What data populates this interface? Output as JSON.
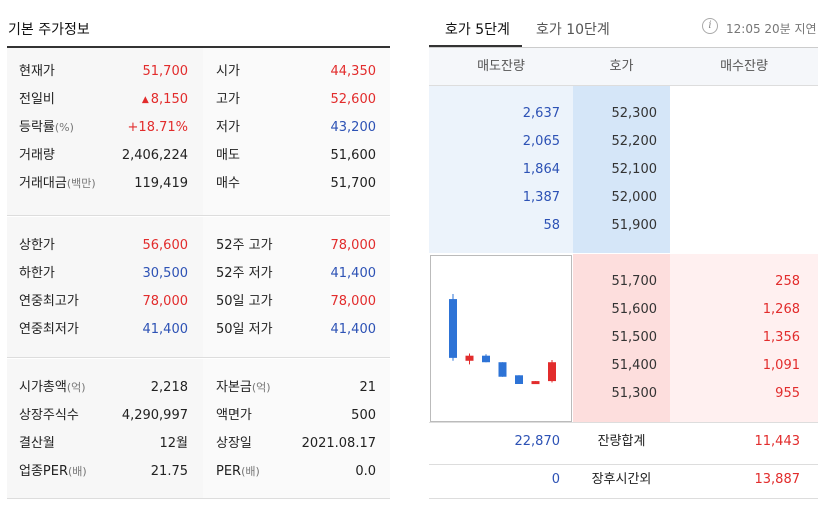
{
  "left": {
    "title": "기본 주가정보",
    "section1": [
      {
        "k1": "현재가",
        "k1_unit": "",
        "v1": "51,700",
        "v1_color": "red",
        "v1_prefix": "",
        "k2": "시가",
        "k2_unit": "",
        "v2": "44,350",
        "v2_color": "red"
      },
      {
        "k1": "전일비",
        "k1_unit": "",
        "v1": "8,150",
        "v1_color": "red",
        "v1_prefix": "▲",
        "k2": "고가",
        "k2_unit": "",
        "v2": "52,600",
        "v2_color": "red"
      },
      {
        "k1": "등락률",
        "k1_unit": "(%)",
        "v1": "+18.71%",
        "v1_color": "red",
        "v1_prefix": "",
        "k2": "저가",
        "k2_unit": "",
        "v2": "43,200",
        "v2_color": "blue"
      },
      {
        "k1": "거래량",
        "k1_unit": "",
        "v1": "2,406,224",
        "v1_color": "",
        "v1_prefix": "",
        "k2": "매도",
        "k2_unit": "",
        "v2": "51,600",
        "v2_color": ""
      },
      {
        "k1": "거래대금",
        "k1_unit": "(백만)",
        "v1": "119,419",
        "v1_color": "",
        "v1_prefix": "",
        "k2": "매수",
        "k2_unit": "",
        "v2": "51,700",
        "v2_color": ""
      }
    ],
    "section2": [
      {
        "k1": "상한가",
        "k1_unit": "",
        "v1": "56,600",
        "v1_color": "red",
        "v1_prefix": "",
        "k2": "52주 고가",
        "k2_unit": "",
        "v2": "78,000",
        "v2_color": "red"
      },
      {
        "k1": "하한가",
        "k1_unit": "",
        "v1": "30,500",
        "v1_color": "blue",
        "v1_prefix": "",
        "k2": "52주 저가",
        "k2_unit": "",
        "v2": "41,400",
        "v2_color": "blue"
      },
      {
        "k1": "연중최고가",
        "k1_unit": "",
        "v1": "78,000",
        "v1_color": "red",
        "v1_prefix": "",
        "k2": "50일 고가",
        "k2_unit": "",
        "v2": "78,000",
        "v2_color": "red"
      },
      {
        "k1": "연중최저가",
        "k1_unit": "",
        "v1": "41,400",
        "v1_color": "blue",
        "v1_prefix": "",
        "k2": "50일 저가",
        "k2_unit": "",
        "v2": "41,400",
        "v2_color": "blue"
      }
    ],
    "section3": [
      {
        "k1": "시가총액",
        "k1_unit": "(억)",
        "v1": "2,218",
        "v1_color": "",
        "v1_prefix": "",
        "k2": "자본금",
        "k2_unit": "(억)",
        "v2": "21",
        "v2_color": ""
      },
      {
        "k1": "상장주식수",
        "k1_unit": "",
        "v1": "4,290,997",
        "v1_color": "",
        "v1_prefix": "",
        "k2": "액면가",
        "k2_unit": "",
        "v2": "500",
        "v2_color": ""
      },
      {
        "k1": "결산월",
        "k1_unit": "",
        "v1": "12월",
        "v1_color": "",
        "v1_prefix": "",
        "k2": "상장일",
        "k2_unit": "",
        "v2": "2021.08.17",
        "v2_color": ""
      },
      {
        "k1": "업종PER",
        "k1_unit": "(배)",
        "v1": "21.75",
        "v1_color": "",
        "v1_prefix": "",
        "k2": "PER",
        "k2_unit": "(배)",
        "v2": "0.0",
        "v2_color": ""
      }
    ]
  },
  "right": {
    "tabs": [
      {
        "label": "호가 5단계",
        "active": true
      },
      {
        "label": "호가 10단계",
        "active": false
      }
    ],
    "info_icon": "i",
    "delay_text": "12:05 20분 지연",
    "headers": [
      "매도잔량",
      "호가",
      "매수잔량"
    ],
    "asks": [
      {
        "qty": "2,637",
        "price": "52,300"
      },
      {
        "qty": "2,065",
        "price": "52,200"
      },
      {
        "qty": "1,864",
        "price": "52,100"
      },
      {
        "qty": "1,387",
        "price": "52,000"
      },
      {
        "qty": "58",
        "price": "51,900"
      }
    ],
    "bids": [
      {
        "price": "51,700",
        "qty": "258"
      },
      {
        "price": "51,600",
        "qty": "1,268"
      },
      {
        "price": "51,500",
        "qty": "1,356"
      },
      {
        "price": "51,400",
        "qty": "1,091"
      },
      {
        "price": "51,300",
        "qty": "955"
      }
    ],
    "summary": [
      {
        "left": "22,870",
        "label": "잔량합계",
        "right": "11,443"
      },
      {
        "left": "0",
        "label": "장후시간외",
        "right": "13,887"
      }
    ],
    "colors": {
      "up": "#e22c2c",
      "down": "#2d52b5",
      "candle_down": "#2d73d6"
    },
    "mini_chart": {
      "type": "candlestick",
      "candles": [
        {
          "direction": "down",
          "open": 0.93,
          "close": 0.12,
          "high": 1.0,
          "low": 0.08
        },
        {
          "direction": "up",
          "open": 0.08,
          "close": 0.15,
          "high": 0.18,
          "low": 0.03
        },
        {
          "direction": "down",
          "open": 0.15,
          "close": 0.06,
          "high": 0.17,
          "low": 0.06
        },
        {
          "direction": "down",
          "open": 0.06,
          "close": -0.14,
          "high": 0.06,
          "low": -0.14
        },
        {
          "direction": "down",
          "open": -0.12,
          "close": -0.24,
          "high": -0.12,
          "low": -0.24
        },
        {
          "direction": "up",
          "open": -0.23,
          "close": -0.2,
          "high": -0.2,
          "low": -0.23
        },
        {
          "direction": "up",
          "open": -0.2,
          "close": 0.06,
          "high": 0.09,
          "low": -0.22
        }
      ]
    }
  }
}
